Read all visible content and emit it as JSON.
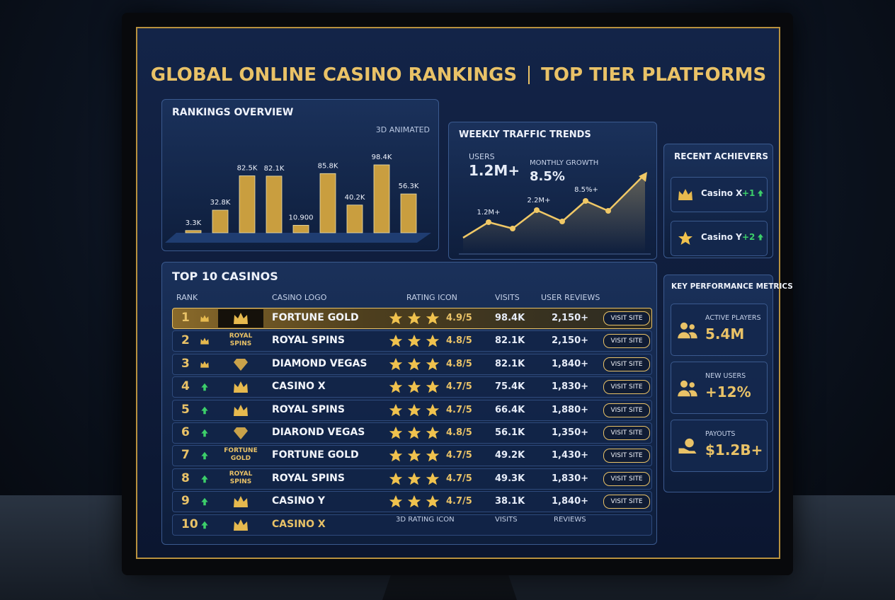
{
  "header": {
    "title": "GLOBAL ONLINE CASINO RANKINGS",
    "subtitle": "TOP TIER PLATFORMS"
  },
  "chart_data": {
    "type": "bar",
    "title": "RANKINGS OVERVIEW",
    "subtitle": "3D ANIMATED",
    "values": [
      3.3,
      32.8,
      82.5,
      82.1,
      10.9,
      85.8,
      40.2,
      98.4,
      56.3
    ],
    "value_labels": [
      "3.3K",
      "32.8K",
      "82.5K",
      "82.1K",
      "10.900",
      "85.8K",
      "40.2K",
      "98.4K",
      "56.3K"
    ],
    "color": "#d9a93f"
  },
  "traffic": {
    "title": "WEEKLY TRAFFIC TRENDS",
    "users_label": "USERS",
    "users": "1.2M+",
    "growth_label": "MONTHLY GROWTH",
    "growth": "8.5%",
    "point_labels": [
      "1.2M+",
      "2.2M+",
      "8.5%+"
    ]
  },
  "achievers": {
    "title": "RECENT ACHIEVERS",
    "items": [
      {
        "name": "Casino X",
        "change": "+1"
      },
      {
        "name": "Casino Y",
        "change": "+2"
      }
    ]
  },
  "table": {
    "title": "TOP 10 CASINOS",
    "columns": [
      "RANK",
      "CASINO LOGO",
      "RATING ICON",
      "VISITS",
      "USER REVIEWS"
    ],
    "rows": [
      {
        "rank": 1,
        "name": "FORTUNE GOLD",
        "rating": "4.9/5",
        "visits": "98.4K",
        "reviews": "2,150+",
        "action": "VISIT SITE"
      },
      {
        "rank": 2,
        "logo": "ROYAL SPINS",
        "name": "ROYAL SPINS",
        "rating": "4.8/5",
        "visits": "82.1K",
        "reviews": "2,150+",
        "action": "VISIT SITE"
      },
      {
        "rank": 3,
        "name": "DIAMOND VEGAS",
        "rating": "4.8/5",
        "visits": "82.1K",
        "reviews": "1,840+",
        "action": "VISIT SITE"
      },
      {
        "rank": 4,
        "name": "CASINO X",
        "rating": "4.7/5",
        "visits": "75.4K",
        "reviews": "1,830+",
        "action": "VISIT SITE"
      },
      {
        "rank": 5,
        "name": "ROYAL SPINS",
        "rating": "4.7/5",
        "visits": "66.4K",
        "reviews": "1,880+",
        "action": "VISIT SITE"
      },
      {
        "rank": 6,
        "name": "DIAROND VEGAS",
        "rating": "4.8/5",
        "visits": "56.1K",
        "reviews": "1,350+",
        "action": "VISIT SITE"
      },
      {
        "rank": 7,
        "logo": "FORTUNE GOLD",
        "name": "FORTUNE GOLD",
        "rating": "4.7/5",
        "visits": "49.2K",
        "reviews": "1,430+",
        "action": "VISIT SITE"
      },
      {
        "rank": 8,
        "logo": "ROYAL SPINS",
        "name": "ROYAL SPINS",
        "rating": "4.7/5",
        "visits": "49.3K",
        "reviews": "1,830+",
        "action": "VISIT SITE"
      },
      {
        "rank": 9,
        "name": "CASINO Y",
        "rating": "4.7/5",
        "visits": "38.1K",
        "reviews": "1,840+",
        "action": "VISIT SITE"
      },
      {
        "rank": 10,
        "name": "CASINO X"
      }
    ],
    "footer": [
      "3D RATING ICON",
      "VISITS",
      "REVIEWS"
    ]
  },
  "kpis": {
    "title": "KEY PERFORMANCE METRICS",
    "items": [
      {
        "label": "ACTIVE PLAYERS",
        "value": "5.4M"
      },
      {
        "label": "NEW USERS",
        "value": "+12%"
      },
      {
        "label": "PAYOUTS",
        "value": "$1.2B+"
      }
    ]
  }
}
